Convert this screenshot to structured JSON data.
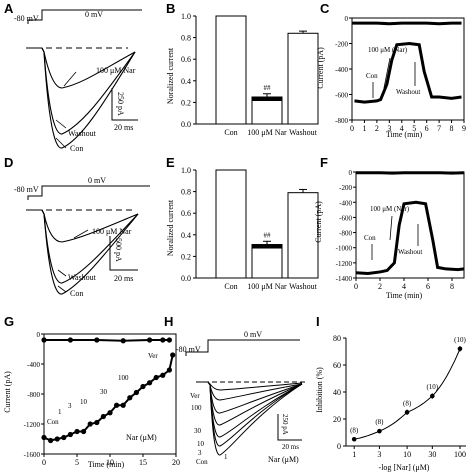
{
  "panels": {
    "A": {
      "label": "A",
      "hold_label": "-80 mV",
      "step_label": "0 mV",
      "trace_labels": [
        "100 μM Nar",
        "Washout",
        "Con"
      ],
      "scale_y": "250 pA",
      "scale_x": "20 ms"
    },
    "B": {
      "label": "B",
      "chart_data": {
        "type": "bar",
        "categories": [
          "Con",
          "100 μM Nar",
          "Washout"
        ],
        "values": [
          1.0,
          0.25,
          0.84
        ],
        "errors": [
          0,
          0.03,
          0.02
        ],
        "ylabel": "Noralized current",
        "ylim": [
          0,
          1.0
        ],
        "yticks": [
          "0.0",
          "0.2",
          "0.4",
          "0.6",
          "0.8",
          "1.0"
        ],
        "significance": [
          "",
          "##",
          ""
        ]
      }
    },
    "C": {
      "label": "C",
      "chart_data": {
        "type": "line",
        "xlabel": "Time (min)",
        "ylabel": "Current (pA)",
        "xlim": [
          0,
          9
        ],
        "ylim": [
          -800,
          0
        ],
        "xticks": [
          "0",
          "1",
          "2",
          "3",
          "4",
          "5",
          "6",
          "7",
          "8",
          "9"
        ],
        "yticks": [
          "0",
          "-200",
          "-400",
          "-600",
          "-800"
        ],
        "series": [
          {
            "x": [
              0,
              1,
              2,
              3,
              4,
              5,
              6,
              7,
              8,
              8.8
            ],
            "y": [
              -40,
              -40,
              -40,
              -45,
              -40,
              -40,
              -40,
              -45,
              -40,
              -40
            ]
          },
          {
            "x": [
              0.2,
              1,
              2,
              2.3,
              2.8,
              3.2,
              3.6,
              4.6,
              5.4,
              5.8,
              6.4,
              7,
              8,
              8.8
            ],
            "y": [
              -650,
              -660,
              -650,
              -640,
              -520,
              -330,
              -210,
              -200,
              -210,
              -420,
              -620,
              -620,
              -630,
              -620
            ]
          }
        ],
        "annotations": [
          "100 μM (Nar)",
          "Con",
          "Washout"
        ]
      }
    },
    "D": {
      "label": "D",
      "hold_label": "-80 mV",
      "step_label": "0 mV",
      "trace_labels": [
        "100 μM Nar",
        "Washout",
        "Con"
      ],
      "scale_y": "500 pA",
      "scale_x": "20 ms"
    },
    "E": {
      "label": "E",
      "chart_data": {
        "type": "bar",
        "categories": [
          "Con",
          "100 μM Nar",
          "Washout"
        ],
        "values": [
          1.0,
          0.31,
          0.79
        ],
        "errors": [
          0,
          0.03,
          0.03
        ],
        "ylabel": "Noralized current",
        "ylim": [
          0,
          1.0
        ],
        "yticks": [
          "0.0",
          "0.2",
          "0.4",
          "0.6",
          "0.8",
          "1.0"
        ],
        "significance": [
          "",
          "##",
          ""
        ]
      }
    },
    "F": {
      "label": "F",
      "chart_data": {
        "type": "line",
        "xlabel": "Time (min)",
        "ylabel": "Current (pA)",
        "xlim": [
          0,
          9
        ],
        "ylim": [
          -1400,
          0
        ],
        "xticks": [
          "0",
          "2",
          "4",
          "6",
          "8"
        ],
        "yticks": [
          "0",
          "-200",
          "-400",
          "-600",
          "-800",
          "-1000",
          "-1200",
          "-1400"
        ],
        "series": [
          {
            "x": [
              0,
              1,
              2,
              3,
              4,
              5,
              6,
              7,
              8,
              9
            ],
            "y": [
              -10,
              -10,
              -10,
              -15,
              -10,
              -10,
              -10,
              -10,
              -15,
              -10
            ]
          },
          {
            "x": [
              0,
              1,
              2,
              2.6,
              3.2,
              3.6,
              4,
              5,
              5.8,
              6.4,
              6.8,
              7.5,
              8.5,
              9
            ],
            "y": [
              -1330,
              -1340,
              -1320,
              -1300,
              -1200,
              -700,
              -420,
              -400,
              -420,
              -900,
              -1260,
              -1280,
              -1290,
              -1280
            ]
          }
        ],
        "annotations": [
          "100 μM (Nar)",
          "Con",
          "Washout"
        ]
      }
    },
    "G": {
      "label": "G",
      "chart_data": {
        "type": "scatter",
        "xlabel": "Time (min)",
        "ylabel": "Current (pA)",
        "xlim": [
          0,
          20
        ],
        "ylim": [
          -1600,
          0
        ],
        "xticks": [
          "0",
          "5",
          "10",
          "15",
          "20"
        ],
        "yticks": [
          "0",
          "-400",
          "-800",
          "-1200",
          "-1600"
        ],
        "series": [
          {
            "x": [
              0,
              4,
              8,
              12,
              16,
              18,
              19
            ],
            "y": [
              -80,
              -80,
              -80,
              -90,
              -80,
              -80,
              -80
            ]
          },
          {
            "x": [
              0,
              1,
              2,
              3,
              4,
              5,
              6,
              7,
              8,
              9,
              10,
              11,
              12,
              13,
              14,
              15,
              16,
              17,
              18,
              19,
              19.5
            ],
            "y": [
              -1380,
              -1420,
              -1400,
              -1380,
              -1340,
              -1300,
              -1300,
              -1200,
              -1180,
              -1100,
              -1050,
              -950,
              -950,
              -850,
              -780,
              -700,
              -650,
              -580,
              -550,
              -480,
              -280
            ]
          }
        ],
        "annotations": [
          "Con",
          "1",
          "3",
          "10",
          "30",
          "100",
          "Ver",
          "Nar (μM)"
        ]
      }
    },
    "H": {
      "label": "H",
      "hold_label": "-80 mV",
      "step_label": "0 mV",
      "trace_labels": [
        "Ver",
        "100",
        "30",
        "10",
        "3",
        "1",
        "Con"
      ],
      "scale_y": "250 pA",
      "scale_x": "20 ms",
      "legend": "Nar (μM)"
    },
    "I": {
      "label": "I",
      "chart_data": {
        "type": "scatter",
        "xlabel": "-log [Nar] (μM)",
        "ylabel": "Inhibition (%)",
        "xscale": "log",
        "xlim": [
          0.7,
          130
        ],
        "ylim": [
          0,
          80
        ],
        "xticks": [
          "1",
          "3",
          "10",
          "30",
          "100"
        ],
        "yticks": [
          "0",
          "20",
          "40",
          "60",
          "80"
        ],
        "series": [
          {
            "x": [
              1,
              3,
              10,
              30,
              100
            ],
            "y": [
              5,
              11,
              25,
              37,
              72
            ],
            "errors": [
              1,
              1,
              2,
              2,
              2
            ],
            "n": [
              "(8)",
              "(8)",
              "(8)",
              "(10)",
              "(10)"
            ]
          }
        ]
      }
    }
  }
}
